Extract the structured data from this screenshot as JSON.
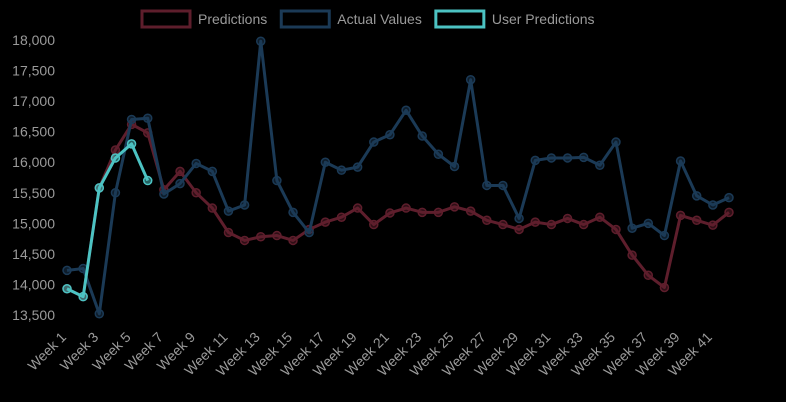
{
  "chart_data": {
    "type": "line",
    "categories": [
      "Week 1",
      null,
      "Week 3",
      null,
      "Week 5",
      null,
      "Week 7",
      null,
      "Week 9",
      null,
      "Week 11",
      null,
      "Week 13",
      null,
      "Week 15",
      null,
      "Week 17",
      null,
      "Week 19",
      null,
      "Week 21",
      null,
      "Week 23",
      null,
      "Week 25",
      null,
      "Week 27",
      null,
      "Week 29",
      null,
      "Week 31",
      null,
      "Week 33",
      null,
      "Week 35",
      null,
      "Week 37",
      null,
      "Week 39",
      null,
      "Week 41",
      null
    ],
    "series": [
      {
        "name": "Predictions",
        "color": "#5e1e2c",
        "values": [
          13930,
          13800,
          15580,
          16200,
          16620,
          16480,
          15550,
          15850,
          15500,
          15250,
          14850,
          14720,
          14780,
          14800,
          14720,
          14900,
          15020,
          15100,
          15250,
          14980,
          15170,
          15250,
          15180,
          15180,
          15270,
          15200,
          15050,
          14980,
          14900,
          15020,
          14980,
          15080,
          14980,
          15100,
          14900,
          14480,
          14150,
          13950,
          15130,
          15050,
          14970,
          15180
        ]
      },
      {
        "name": "Actual Values",
        "color": "#1b3a56",
        "values": [
          14230,
          14260,
          13520,
          15500,
          16700,
          16720,
          15480,
          15650,
          15980,
          15850,
          15200,
          15300,
          17980,
          15700,
          15180,
          14850,
          16000,
          15870,
          15920,
          16330,
          16450,
          16850,
          16430,
          16130,
          15930,
          17350,
          15620,
          15620,
          15080,
          16030,
          16070,
          16070,
          16080,
          15950,
          16330,
          14920,
          15000,
          14800,
          16020,
          15450,
          15300,
          15420
        ]
      },
      {
        "name": "User Predictions",
        "color": "#4cc3c3",
        "values": [
          13930,
          13800,
          15580,
          16070,
          16300,
          15700,
          null,
          null,
          null,
          null,
          null,
          null,
          null,
          null,
          null,
          null,
          null,
          null,
          null,
          null,
          null,
          null,
          null,
          null,
          null,
          null,
          null,
          null,
          null,
          null,
          null,
          null,
          null,
          null,
          null,
          null,
          null,
          null,
          null,
          null,
          null,
          null
        ]
      }
    ],
    "ylim": [
      13500,
      18000
    ],
    "yticks": [
      {
        "value": 13500,
        "label": "13,500"
      },
      {
        "value": 14000,
        "label": "14,000"
      },
      {
        "value": 14500,
        "label": "14,500"
      },
      {
        "value": 15000,
        "label": "15,000"
      },
      {
        "value": 15500,
        "label": "15,500"
      },
      {
        "value": 16000,
        "label": "16,000"
      },
      {
        "value": 16500,
        "label": "16,500"
      },
      {
        "value": 17000,
        "label": "17,000"
      },
      {
        "value": 17500,
        "label": "17,500"
      },
      {
        "value": 18000,
        "label": "18,000"
      }
    ],
    "legend": "top",
    "grid": false
  }
}
